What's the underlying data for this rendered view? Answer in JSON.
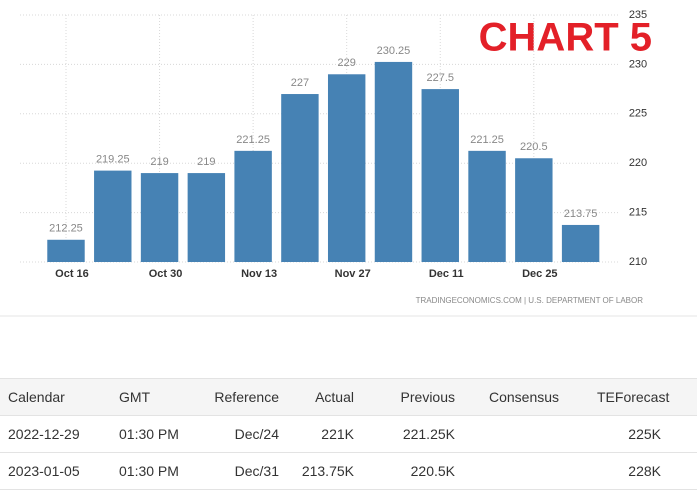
{
  "chart_data": {
    "type": "bar",
    "title": "CHART 5",
    "source": "TRADINGECONOMICS.COM | U.S. DEPARTMENT OF LABOR",
    "categories": [
      "Oct 16",
      null,
      "Oct 30",
      null,
      "Nov 13",
      null,
      "Nov 27",
      null,
      "Dec 11",
      null,
      "Dec 25",
      null
    ],
    "values": [
      212.25,
      219.25,
      219,
      219,
      221.25,
      227,
      229,
      230.25,
      227.5,
      221.25,
      220.5,
      213.75
    ],
    "color": "#4682b4",
    "ylim": [
      210,
      235
    ],
    "yticks": [
      210,
      215,
      220,
      225,
      230,
      235
    ],
    "grid": true
  },
  "table": {
    "columns": [
      "Calendar",
      "GMT",
      "Reference",
      "Actual",
      "Previous",
      "Consensus",
      "TEForecast"
    ],
    "rows": [
      [
        "2022-12-29",
        "01:30 PM",
        "Dec/24",
        "221K",
        "221.25K",
        null,
        "225K"
      ],
      [
        "2023-01-05",
        "01:30 PM",
        "Dec/31",
        "213.75K",
        "220.5K",
        null,
        "228K"
      ]
    ]
  }
}
